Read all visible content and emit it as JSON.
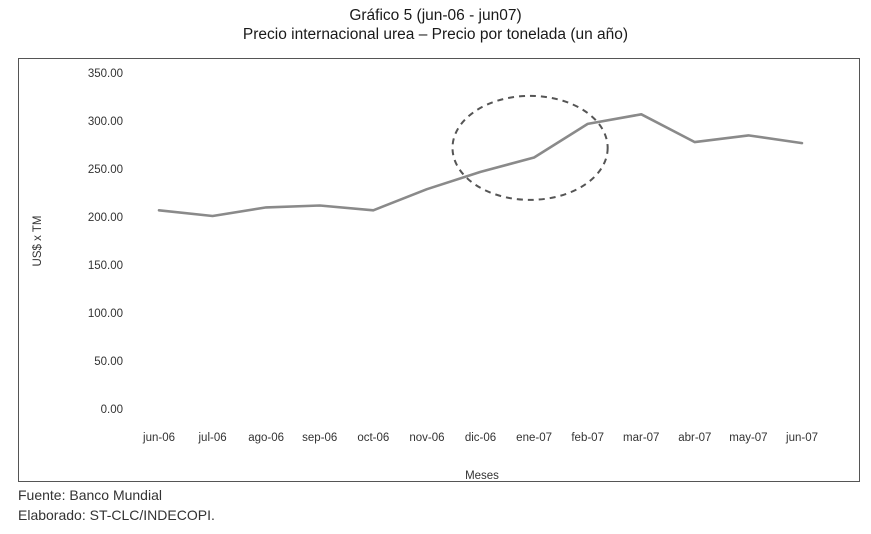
{
  "chart_data": {
    "type": "line",
    "title": "Gráfico 5 (jun-06 - jun07)",
    "subtitle": "Precio internacional urea – Precio por tonelada (un año)",
    "xlabel": "Meses",
    "ylabel": "US$ x TM",
    "ylim": [
      0,
      350
    ],
    "yticks": [
      "0.00",
      "50.00",
      "100.00",
      "150.00",
      "200.00",
      "250.00",
      "300.00",
      "350.00"
    ],
    "grid": false,
    "legend": "none",
    "categories": [
      "jun-06",
      "jul-06",
      "ago-06",
      "sep-06",
      "oct-06",
      "nov-06",
      "dic-06",
      "ene-07",
      "feb-07",
      "mar-07",
      "abr-07",
      "may-07",
      "jun-07"
    ],
    "series": [
      {
        "values": [
          207,
          201,
          210,
          212,
          207,
          229,
          247,
          262,
          297,
          307,
          278,
          285,
          277
        ]
      }
    ],
    "annotations": [
      {
        "type": "dashed-ellipse",
        "around": [
          "dic-06",
          "ene-07",
          "feb-07"
        ]
      }
    ],
    "colors": {
      "line": "#8a8a8a",
      "ellipse": "#555555",
      "frame": "#555555"
    }
  },
  "footer": {
    "source": "Fuente: Banco Mundial",
    "made_by": "Elaborado: ST-CLC/INDECOPI."
  }
}
